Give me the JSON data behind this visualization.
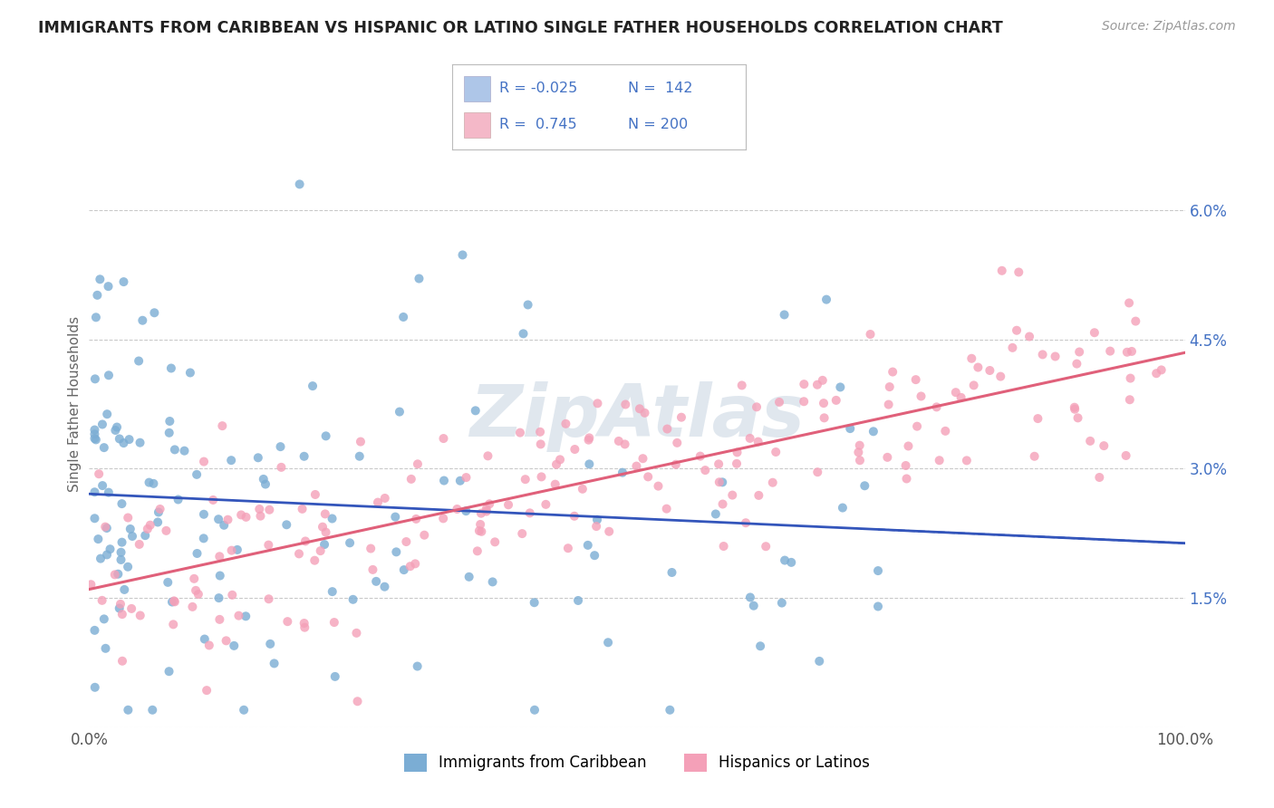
{
  "title": "IMMIGRANTS FROM CARIBBEAN VS HISPANIC OR LATINO SINGLE FATHER HOUSEHOLDS CORRELATION CHART",
  "source": "Source: ZipAtlas.com",
  "ylabel": "Single Father Households",
  "blue_R": -0.025,
  "blue_N": 142,
  "pink_R": 0.745,
  "pink_N": 200,
  "blue_color": "#7badd4",
  "pink_color": "#f4a0b8",
  "blue_line_color": "#3355bb",
  "pink_line_color": "#e0607a",
  "legend_blue_fill": "#aec6e8",
  "legend_pink_fill": "#f4b8c8",
  "watermark": "ZipAtlas",
  "xmin": 0.0,
  "xmax": 1.0,
  "ymin": 0.0,
  "ymax": 0.075,
  "yticks": [
    0.0,
    0.015,
    0.03,
    0.045,
    0.06
  ],
  "ytick_labels": [
    "",
    "1.5%",
    "3.0%",
    "4.5%",
    "6.0%"
  ],
  "xticks": [
    0.0,
    1.0
  ],
  "xtick_labels": [
    "0.0%",
    "100.0%"
  ]
}
